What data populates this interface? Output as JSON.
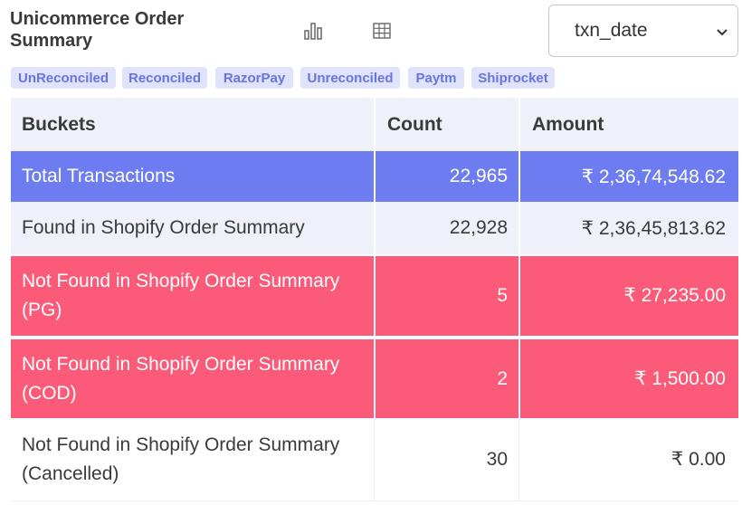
{
  "header": {
    "title": "Unicommerce Order Summary",
    "chart_icon": "bar-chart-icon",
    "table_icon": "table-grid-icon",
    "date_select": {
      "value": "txn_date",
      "chevron_icon": "chevron-down-icon"
    }
  },
  "tags": [
    "UnReconciled",
    "Reconciled",
    "RazorPay",
    "Unreconciled",
    "Paytm",
    "Shiprocket"
  ],
  "table": {
    "headers": [
      "Buckets",
      "Count",
      "Amount"
    ],
    "rows": [
      {
        "bucket": "Total Transactions",
        "count": "22,965",
        "amount": "₹ 2,36,74,548.62"
      },
      {
        "bucket": "Found in Shopify Order Summary",
        "count": "22,928",
        "amount": "₹ 2,36,45,813.62"
      },
      {
        "bucket": "Not Found in Shopify Order Summary (PG)",
        "count": "5",
        "amount": "₹ 27,235.00"
      },
      {
        "bucket": "Not Found in Shopify Order Summary (COD)",
        "count": "2",
        "amount": "₹ 1,500.00"
      },
      {
        "bucket": "Not Found in Shopify Order Summary (Cancelled)",
        "count": "30",
        "amount": "₹ 0.00"
      }
    ]
  },
  "colors": {
    "total_row": "#6d7cf0",
    "not_found_row": "#fb5a78",
    "header_row": "#eef1f8",
    "tag_bg": "#dfe3fb",
    "tag_text": "#6b73e0"
  }
}
